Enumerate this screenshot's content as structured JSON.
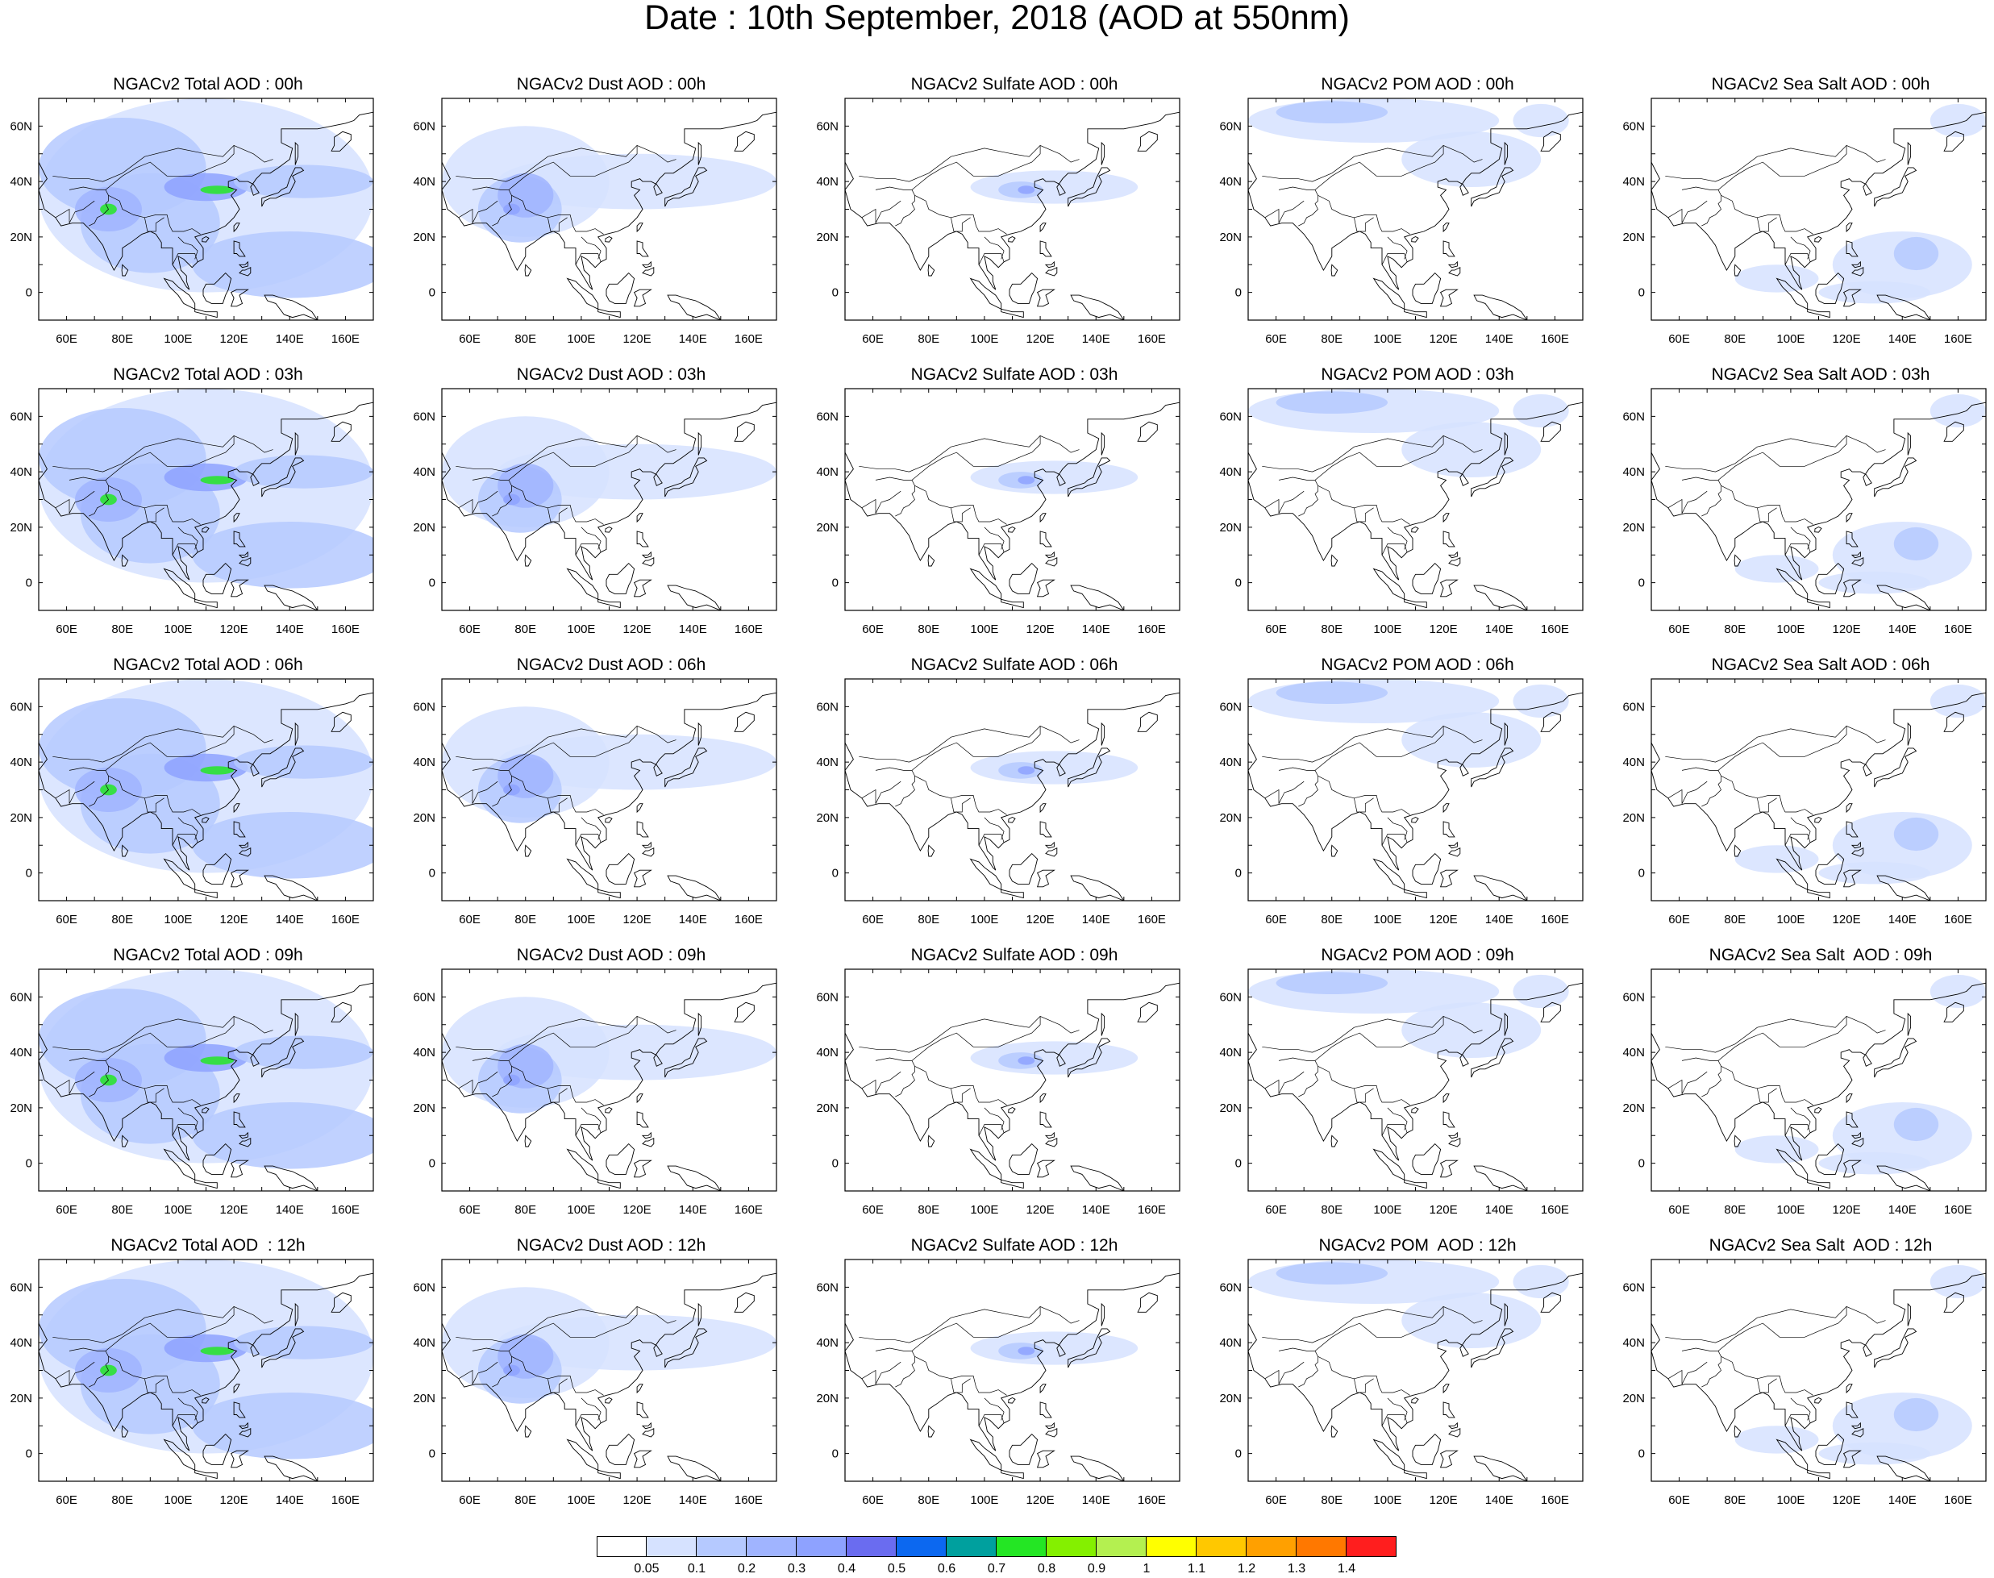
{
  "title": "Date : 10th September, 2018 (AOD at 550nm)",
  "map": {
    "lon_range": [
      50,
      170
    ],
    "lat_range": [
      -10,
      70
    ],
    "lon_ticks": [
      "60E",
      "80E",
      "100E",
      "120E",
      "140E",
      "160E"
    ],
    "lat_ticks": [
      "60N",
      "40N",
      "20N",
      "0"
    ]
  },
  "panels": [
    {
      "title": "NGACv2 Total AOD : 00h",
      "species": "total",
      "hour": "00h"
    },
    {
      "title": "NGACv2 Dust AOD : 00h",
      "species": "dust",
      "hour": "00h"
    },
    {
      "title": "NGACv2 Sulfate AOD : 00h",
      "species": "sulfate",
      "hour": "00h"
    },
    {
      "title": "NGACv2 POM AOD : 00h",
      "species": "pom",
      "hour": "00h"
    },
    {
      "title": "NGACv2 Sea Salt AOD : 00h",
      "species": "seasalt",
      "hour": "00h"
    },
    {
      "title": "NGACv2 Total AOD : 03h",
      "species": "total",
      "hour": "03h"
    },
    {
      "title": "NGACv2 Dust AOD : 03h",
      "species": "dust",
      "hour": "03h"
    },
    {
      "title": "NGACv2 Sulfate AOD : 03h",
      "species": "sulfate",
      "hour": "03h"
    },
    {
      "title": "NGACv2 POM AOD : 03h",
      "species": "pom",
      "hour": "03h"
    },
    {
      "title": "NGACv2 Sea Salt AOD : 03h",
      "species": "seasalt",
      "hour": "03h"
    },
    {
      "title": "NGACv2 Total AOD : 06h",
      "species": "total",
      "hour": "06h"
    },
    {
      "title": "NGACv2 Dust AOD : 06h",
      "species": "dust",
      "hour": "06h"
    },
    {
      "title": "NGACv2 Sulfate AOD : 06h",
      "species": "sulfate",
      "hour": "06h"
    },
    {
      "title": "NGACv2 POM AOD : 06h",
      "species": "pom",
      "hour": "06h"
    },
    {
      "title": "NGACv2 Sea Salt AOD : 06h",
      "species": "seasalt",
      "hour": "06h"
    },
    {
      "title": "NGACv2 Total AOD : 09h",
      "species": "total",
      "hour": "09h"
    },
    {
      "title": "NGACv2 Dust AOD : 09h",
      "species": "dust",
      "hour": "09h"
    },
    {
      "title": "NGACv2 Sulfate AOD : 09h",
      "species": "sulfate",
      "hour": "09h"
    },
    {
      "title": "NGACv2 POM AOD : 09h",
      "species": "pom",
      "hour": "09h"
    },
    {
      "title": "NGACv2 Sea Salt  AOD : 09h",
      "species": "seasalt",
      "hour": "09h"
    },
    {
      "title": "NGACv2 Total AOD  : 12h",
      "species": "total",
      "hour": "12h"
    },
    {
      "title": "NGACv2 Dust AOD : 12h",
      "species": "dust",
      "hour": "12h"
    },
    {
      "title": "NGACv2 Sulfate AOD : 12h",
      "species": "sulfate",
      "hour": "12h"
    },
    {
      "title": "NGACv2 POM  AOD : 12h",
      "species": "pom",
      "hour": "12h"
    },
    {
      "title": "NGACv2 Sea Salt  AOD : 12h",
      "species": "seasalt",
      "hour": "12h"
    }
  ],
  "colorbar": {
    "colors": [
      "#ffffff",
      "#d6e2ff",
      "#b5c9ff",
      "#a0b4ff",
      "#8ea2ff",
      "#6a6cf0",
      "#0c68f0",
      "#00a09e",
      "#24e624",
      "#84f000",
      "#b4f050",
      "#ffff00",
      "#ffc800",
      "#ffa000",
      "#ff7800",
      "#ff1e1e"
    ],
    "labels": [
      "0.05",
      "0.1",
      "0.2",
      "0.3",
      "0.4",
      "0.5",
      "0.6",
      "0.7",
      "0.8",
      "0.9",
      "1",
      "1.1",
      "1.2",
      "1.3",
      "1.4"
    ]
  }
}
